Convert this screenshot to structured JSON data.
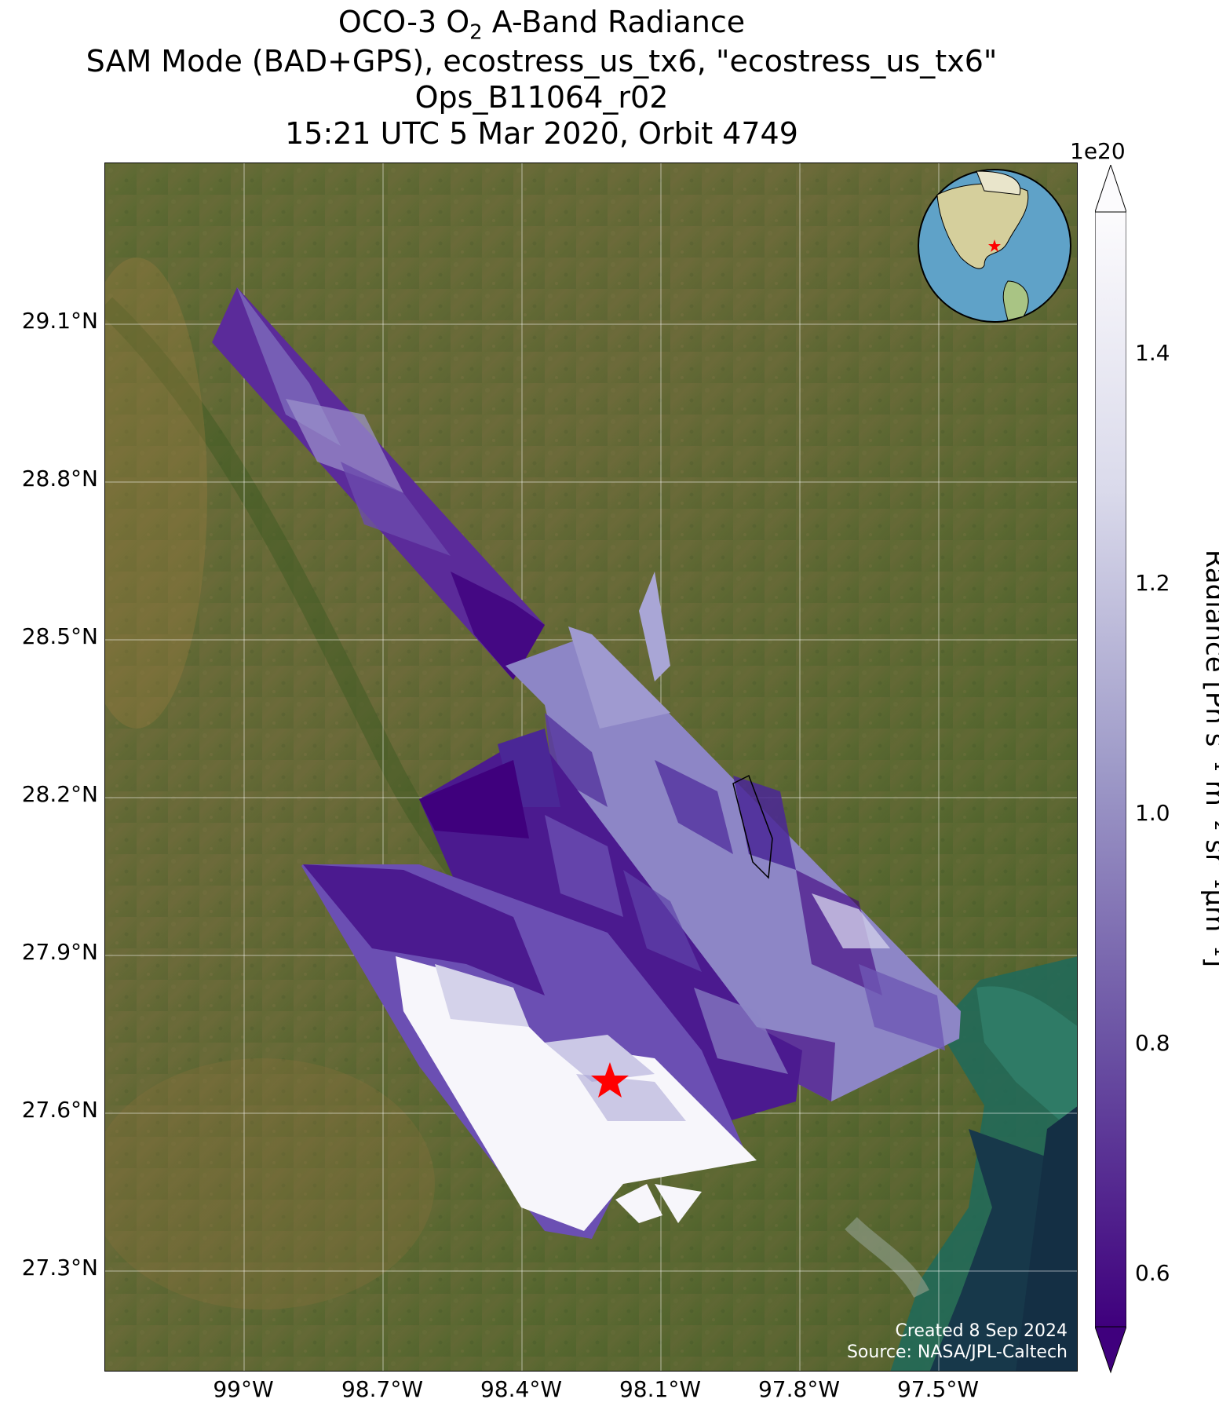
{
  "title": {
    "line1_pre": "OCO-3 O",
    "line1_sub": "2",
    "line1_post": " A-Band Radiance",
    "line2": "SAM Mode (BAD+GPS), ecostress_us_tx6, \"ecostress_us_tx6\"",
    "line3": "Ops_B11064_r02",
    "line4": "15:21 UTC 5 Mar 2020, Orbit 4749"
  },
  "axes": {
    "y_ticks": [
      "29.1°N",
      "28.8°N",
      "28.5°N",
      "28.2°N",
      "27.9°N",
      "27.6°N",
      "27.3°N"
    ],
    "x_ticks": [
      "99°W",
      "98.7°W",
      "98.4°W",
      "98.1°W",
      "97.8°W",
      "97.5°W"
    ]
  },
  "colorbar": {
    "exponent": "1e20",
    "ticks": [
      "1.4",
      "1.2",
      "1.0",
      "0.8",
      "0.6"
    ],
    "label": "Radiance [Ph s⁻¹ m⁻² sr⁻¹μm⁻¹]",
    "range": [
      0.55,
      1.5
    ],
    "colors": {
      "low": "#3f007d",
      "mid": "#807dba",
      "high": "#fcfbfd"
    }
  },
  "credits": {
    "created": "Created 8 Sep 2024",
    "source": "Source: NASA/JPL-Caltech"
  },
  "marker": {
    "symbol": "red-star",
    "color": "#ff0000"
  },
  "inset": {
    "description": "globe-locator"
  }
}
